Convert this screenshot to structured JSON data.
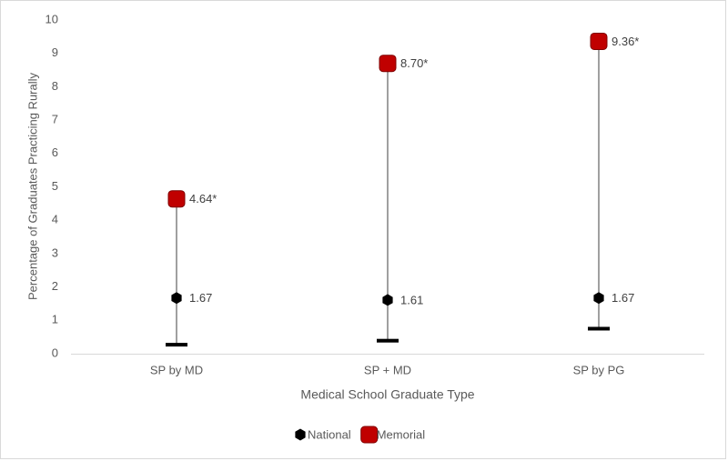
{
  "chart_data": {
    "type": "stock",
    "y_label": "Percentage of Graduates Practicing Rurally",
    "x_label": "Medical School Graduate Type",
    "categories": [
      "SP by MD",
      "SP + MD",
      "SP by PG"
    ],
    "series": [
      {
        "name": "National",
        "color": "#000000",
        "marker": "hexagon",
        "values": [
          1.67,
          1.61,
          1.67
        ]
      },
      {
        "name": "Memorial",
        "color": "#c00000",
        "marker": "square",
        "values": [
          4.64,
          8.7,
          9.36
        ],
        "value_labels": [
          "4.64*",
          "8.70*",
          "9.36*"
        ]
      },
      {
        "color": "#000000",
        "marker": "dash",
        "values": [
          0.27,
          0.39,
          0.75
        ]
      }
    ],
    "high_low_lines": true,
    "ylim": [
      0,
      10
    ],
    "yticks": [
      0,
      1,
      2,
      3,
      4,
      5,
      6,
      7,
      8,
      9,
      10
    ],
    "grid": false,
    "legend": "bottom"
  }
}
